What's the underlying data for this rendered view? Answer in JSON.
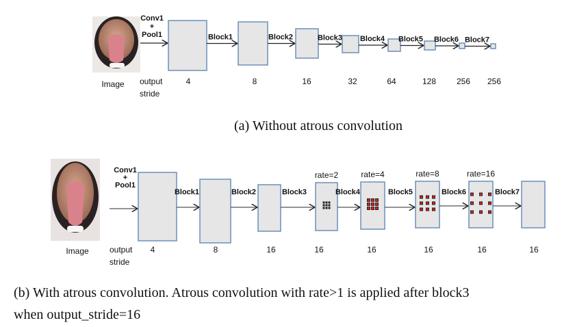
{
  "top": {
    "image_label": "Image",
    "stem_label": [
      "Conv1",
      "+",
      "Pool1"
    ],
    "stride_label": [
      "output",
      "stride"
    ],
    "blocks": [
      "Block1",
      "Block2",
      "Block3",
      "Block4",
      "Block5",
      "Block6",
      "Block7"
    ],
    "strides": [
      "4",
      "8",
      "16",
      "32",
      "64",
      "128",
      "256",
      "256"
    ],
    "caption": "(a) Without atrous convolution"
  },
  "bottom": {
    "image_label": "Image",
    "stem_label": [
      "Conv1",
      "+",
      "Pool1"
    ],
    "stride_label": [
      "output",
      "stride"
    ],
    "blocks": [
      "Block1",
      "Block2",
      "Block3",
      "Block4",
      "Block5",
      "Block6",
      "Block7"
    ],
    "strides": [
      "4",
      "8",
      "16",
      "16",
      "16",
      "16",
      "16",
      "16"
    ],
    "rates": [
      "rate=2",
      "rate=4",
      "rate=8",
      "rate=16"
    ],
    "caption_line1": "(b) With atrous convolution. Atrous convolution with rate>1 is applied after block3",
    "caption_line2": "when output_stride=16"
  },
  "colors": {
    "box_fill": "#e6e6e6",
    "box_stroke": "#6c8fb8",
    "dot_fill": "#e0201c"
  }
}
